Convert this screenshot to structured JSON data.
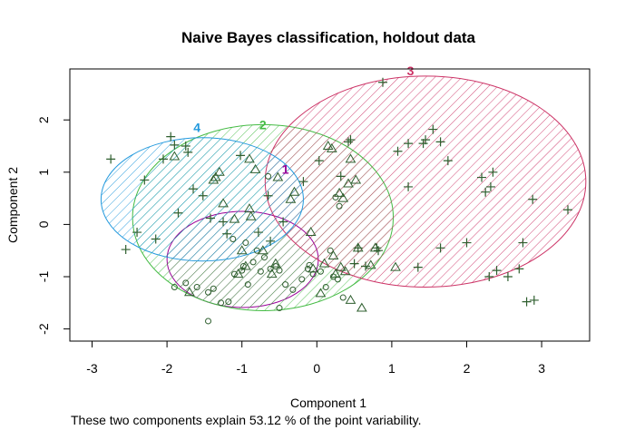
{
  "chart_data": {
    "type": "scatter",
    "title": "Naive Bayes classification, holdout data",
    "xlabel": "Component 1",
    "ylabel": "Component 2",
    "subtitle": "These two components explain 53.12 % of the point variability.",
    "xlim": [
      -3.3,
      3.65
    ],
    "ylim": [
      -2.25,
      3.05
    ],
    "xticks": [
      "-3",
      "-2",
      "-1",
      "0",
      "1",
      "2",
      "3"
    ],
    "yticks": [
      "-2",
      "-1",
      "0",
      "1",
      "2"
    ],
    "grid": false,
    "clusters": [
      {
        "label": "1",
        "color": "#990099",
        "center": [
          -0.99,
          -0.67
        ],
        "label_pos": [
          -0.42,
          0.97
        ],
        "ellipse": {
          "cx": -0.99,
          "cy": -0.67,
          "rx": 1.01,
          "ry": 0.92
        }
      },
      {
        "label": "2",
        "color": "#44bb44",
        "center": [
          -0.72,
          0.13
        ],
        "label_pos": [
          -0.72,
          1.82
        ],
        "ellipse": {
          "cx": -0.72,
          "cy": 0.13,
          "rx": 1.74,
          "ry": 1.78
        }
      },
      {
        "label": "3",
        "color": "#cc3366",
        "center": [
          1.45,
          0.82
        ],
        "label_pos": [
          1.25,
          2.85
        ],
        "ellipse": {
          "cx": 1.45,
          "cy": 0.82,
          "rx": 2.14,
          "ry": 2.02
        }
      },
      {
        "label": "4",
        "color": "#2299dd",
        "center": [
          -1.53,
          0.48
        ],
        "label_pos": [
          -1.6,
          1.77
        ],
        "ellipse": {
          "cx": -1.53,
          "cy": 0.48,
          "rx": 1.35,
          "ry": 1.18
        }
      }
    ],
    "series": [
      {
        "symbol": "circle",
        "points": [
          [
            -1.9,
            -1.2
          ],
          [
            -1.75,
            -1.12
          ],
          [
            -1.6,
            -1.2
          ],
          [
            -1.45,
            -1.3
          ],
          [
            -1.38,
            -1.23
          ],
          [
            -1.28,
            -1.5
          ],
          [
            -1.18,
            -1.48
          ],
          [
            -1.1,
            -0.95
          ],
          [
            -1.0,
            -0.88
          ],
          [
            -0.98,
            -0.8
          ],
          [
            -0.92,
            -1.15
          ],
          [
            -0.85,
            -0.72
          ],
          [
            -0.8,
            -0.5
          ],
          [
            -0.75,
            -0.9
          ],
          [
            -0.7,
            -0.63
          ],
          [
            -0.62,
            -0.85
          ],
          [
            -0.55,
            -0.8
          ],
          [
            -0.5,
            -0.88
          ],
          [
            -0.5,
            -1.6
          ],
          [
            -0.42,
            -1.15
          ],
          [
            -0.32,
            -1.25
          ],
          [
            -0.2,
            -1.05
          ],
          [
            -0.12,
            -0.85
          ],
          [
            -0.1,
            -0.78
          ],
          [
            -0.05,
            -0.95
          ],
          [
            0.05,
            -0.9
          ],
          [
            0.12,
            -1.2
          ],
          [
            0.18,
            -0.5
          ],
          [
            0.22,
            -1.0
          ],
          [
            0.28,
            -1.05
          ],
          [
            0.35,
            -1.4
          ],
          [
            -1.45,
            -1.85
          ],
          [
            -1.12,
            -0.28
          ],
          [
            -0.95,
            -0.35
          ],
          [
            -0.65,
            0.92
          ],
          [
            0.25,
            0.52
          ],
          [
            0.3,
            0.35
          ]
        ]
      },
      {
        "symbol": "triangle",
        "points": [
          [
            -1.9,
            1.3
          ],
          [
            -1.7,
            -1.3
          ],
          [
            -1.38,
            0.85
          ],
          [
            -1.35,
            0.9
          ],
          [
            -1.3,
            1.0
          ],
          [
            -1.25,
            0.4
          ],
          [
            -1.1,
            0.1
          ],
          [
            -1.05,
            -0.95
          ],
          [
            -1.0,
            -0.5
          ],
          [
            -0.95,
            -0.8
          ],
          [
            -0.9,
            0.3
          ],
          [
            -0.88,
            0.15
          ],
          [
            -0.9,
            1.25
          ],
          [
            -0.82,
            1.05
          ],
          [
            -0.72,
            -0.5
          ],
          [
            -0.6,
            -0.95
          ],
          [
            -0.55,
            -0.75
          ],
          [
            -0.52,
            0.9
          ],
          [
            -0.35,
            0.48
          ],
          [
            -0.3,
            0.62
          ],
          [
            -0.08,
            -0.15
          ],
          [
            -0.05,
            -0.85
          ],
          [
            0.05,
            -1.32
          ],
          [
            0.1,
            -0.75
          ],
          [
            0.15,
            1.5
          ],
          [
            0.2,
            1.45
          ],
          [
            0.22,
            -0.6
          ],
          [
            0.25,
            -0.95
          ],
          [
            0.3,
            0.6
          ],
          [
            0.32,
            -0.82
          ],
          [
            0.35,
            0.5
          ],
          [
            0.38,
            -0.9
          ],
          [
            0.42,
            0.78
          ],
          [
            0.45,
            1.25
          ],
          [
            0.45,
            -1.45
          ],
          [
            0.52,
            0.85
          ],
          [
            0.55,
            -0.45
          ],
          [
            0.6,
            -1.6
          ],
          [
            0.72,
            -0.78
          ],
          [
            0.78,
            -0.45
          ],
          [
            1.05,
            -0.82
          ]
        ]
      },
      {
        "symbol": "plus",
        "points": [
          [
            0.88,
            2.72
          ],
          [
            1.22,
            1.55
          ],
          [
            1.42,
            1.55
          ],
          [
            1.45,
            1.62
          ],
          [
            1.55,
            1.82
          ],
          [
            1.65,
            1.58
          ],
          [
            1.75,
            1.22
          ],
          [
            1.08,
            1.4
          ],
          [
            1.22,
            0.72
          ],
          [
            1.35,
            -0.82
          ],
          [
            1.65,
            -0.45
          ],
          [
            2.0,
            -0.35
          ],
          [
            2.2,
            0.9
          ],
          [
            2.25,
            0.62
          ],
          [
            2.32,
            0.72
          ],
          [
            2.35,
            1.0
          ],
          [
            2.3,
            -1.0
          ],
          [
            2.4,
            -0.88
          ],
          [
            2.55,
            -1.0
          ],
          [
            2.7,
            -0.85
          ],
          [
            2.75,
            -0.35
          ],
          [
            2.8,
            -1.48
          ],
          [
            2.9,
            -1.45
          ],
          [
            2.88,
            0.48
          ],
          [
            3.35,
            0.28
          ],
          [
            0.42,
            1.58
          ],
          [
            0.45,
            1.62
          ],
          [
            0.03,
            1.22
          ],
          [
            0.5,
            -0.75
          ],
          [
            0.55,
            -0.45
          ],
          [
            0.65,
            -0.8
          ],
          [
            0.8,
            -0.45
          ],
          [
            0.82,
            -0.5
          ],
          [
            0.32,
            0.92
          ],
          [
            -0.18,
            0.82
          ],
          [
            -0.45,
            0.05
          ],
          [
            -0.65,
            0.55
          ],
          [
            -0.78,
            -0.15
          ],
          [
            -0.62,
            -0.32
          ],
          [
            -1.02,
            1.32
          ],
          [
            -1.2,
            -0.18
          ],
          [
            -1.25,
            0.05
          ],
          [
            -1.42,
            0.12
          ],
          [
            -1.52,
            0.55
          ],
          [
            -1.65,
            0.68
          ],
          [
            -1.72,
            1.38
          ],
          [
            -1.75,
            1.5
          ],
          [
            -1.9,
            1.52
          ],
          [
            -1.95,
            1.68
          ],
          [
            -2.05,
            1.25
          ],
          [
            -2.15,
            -0.28
          ],
          [
            -2.3,
            0.85
          ],
          [
            -2.4,
            -0.15
          ],
          [
            -2.55,
            -0.48
          ],
          [
            -2.75,
            1.25
          ],
          [
            -1.85,
            0.22
          ]
        ]
      }
    ]
  }
}
